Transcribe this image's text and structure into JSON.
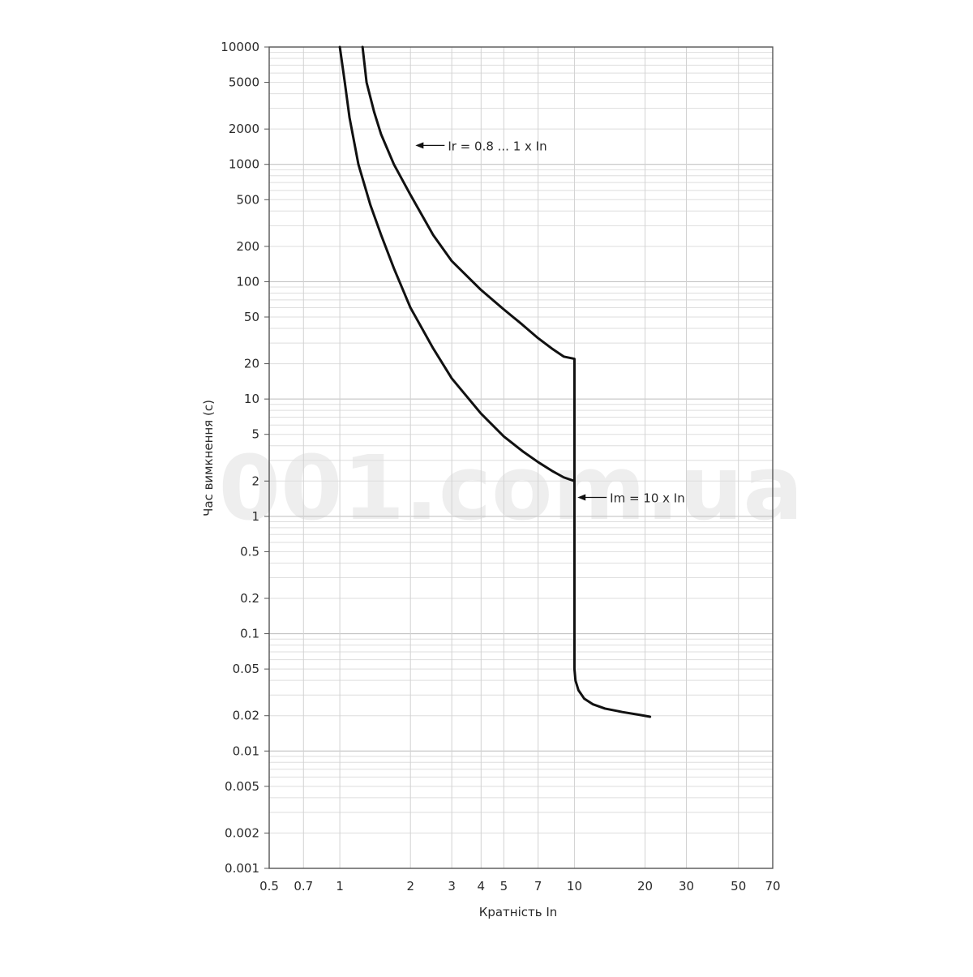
{
  "watermark": "001.com.ua",
  "chart_data": {
    "type": "line",
    "title": "",
    "xlabel": "Кратність In",
    "ylabel": "Час вимкнення (с)",
    "xscale": "log",
    "yscale": "log",
    "xlim": [
      0.5,
      70
    ],
    "ylim": [
      0.001,
      10000
    ],
    "grid": true,
    "x_tick_labels": [
      "0.5",
      "0.7",
      "1",
      "2",
      "3",
      "4",
      "5",
      "7",
      "10",
      "20",
      "30",
      "50",
      "70"
    ],
    "x_ticks": [
      0.5,
      0.7,
      1,
      2,
      3,
      4,
      5,
      7,
      10,
      20,
      30,
      50,
      70
    ],
    "y_tick_labels": [
      "10000",
      "5000",
      "2000",
      "1000",
      "500",
      "200",
      "100",
      "50",
      "20",
      "10",
      "5",
      "2",
      "1",
      "0.5",
      "0.2",
      "0.1",
      "0.05",
      "0.02",
      "0.01",
      "0.005",
      "0.002",
      "0.001"
    ],
    "y_ticks": [
      10000,
      5000,
      2000,
      1000,
      500,
      200,
      100,
      50,
      20,
      10,
      5,
      2,
      1,
      0.5,
      0.2,
      0.1,
      0.05,
      0.02,
      0.01,
      0.005,
      0.002,
      0.001
    ],
    "series": [
      {
        "x": [
          1.0,
          1.05,
          1.1,
          1.2,
          1.35,
          1.5,
          1.7,
          2.0,
          2.5,
          3.0,
          4.0,
          5.0,
          6.0,
          7.0,
          8.0,
          9.0,
          10.0,
          10.0,
          10.1,
          10.4,
          11.0,
          12.0,
          13.5,
          16.0,
          19.0,
          21.0
        ],
        "y": [
          10000,
          5000,
          2500,
          1000,
          450,
          250,
          130,
          60,
          27,
          15,
          7.5,
          4.8,
          3.6,
          2.9,
          2.45,
          2.15,
          2.0,
          0.05,
          0.04,
          0.033,
          0.028,
          0.025,
          0.023,
          0.0215,
          0.0203,
          0.0196
        ]
      },
      {
        "x": [
          1.25,
          1.3,
          1.4,
          1.5,
          1.7,
          2.0,
          2.5,
          3.0,
          4.0,
          5.0,
          6.0,
          7.0,
          8.0,
          9.0,
          10.0,
          10.0
        ],
        "y": [
          10000,
          5000,
          2800,
          1800,
          1000,
          550,
          250,
          150,
          85,
          58,
          43,
          33,
          27,
          23,
          22,
          2.0
        ]
      }
    ],
    "annotations": [
      {
        "text": "Ir = 0.8 ... 1 x In",
        "x": 2.1,
        "y": 1450
      },
      {
        "text": "Im = 10 x In",
        "x": 10.3,
        "y": 1.45
      }
    ]
  }
}
